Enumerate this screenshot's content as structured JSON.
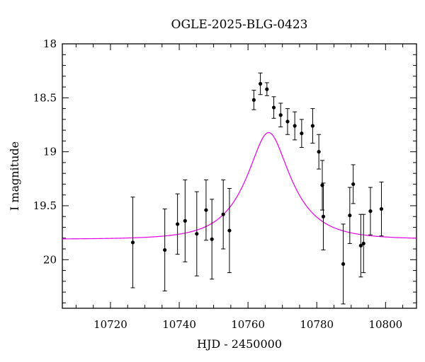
{
  "chart_data": {
    "type": "scatter",
    "title": "OGLE-2025-BLG-0423",
    "xlabel": "HJD - 2450000",
    "ylabel": "I magnitude",
    "xlim": [
      10706,
      10809
    ],
    "ylim": [
      18,
      20.45
    ],
    "y_inverted": true,
    "grid": false,
    "x_major_ticks": [
      10720,
      10740,
      10760,
      10780,
      10800
    ],
    "x_minor_step": 5,
    "y_major_ticks": [
      18,
      18.5,
      19,
      19.5,
      20
    ],
    "y_minor_step": 0.1,
    "x_tick_labels": [
      "10720",
      "10740",
      "10760",
      "10780",
      "10800"
    ],
    "y_tick_labels": [
      "18",
      "18.5",
      "19",
      "19.5",
      "20"
    ],
    "model_color": "#e000e0",
    "model": {
      "t0": 10766.0,
      "u0": 0.43,
      "tE": 11.9,
      "baseline_mag": 19.81
    },
    "series": [
      {
        "points": [
          {
            "x": 10726.5,
            "y": 19.84,
            "err": 0.42
          },
          {
            "x": 10735.8,
            "y": 19.91,
            "err": 0.38
          },
          {
            "x": 10739.5,
            "y": 19.67,
            "err": 0.28
          },
          {
            "x": 10741.7,
            "y": 19.64,
            "err": 0.38
          },
          {
            "x": 10745.1,
            "y": 19.76,
            "err": 0.39
          },
          {
            "x": 10747.8,
            "y": 19.54,
            "err": 0.28
          },
          {
            "x": 10749.5,
            "y": 19.81,
            "err": 0.37
          },
          {
            "x": 10752.8,
            "y": 19.58,
            "err": 0.32
          },
          {
            "x": 10754.6,
            "y": 19.73,
            "err": 0.39
          },
          {
            "x": 10761.7,
            "y": 18.52,
            "err": 0.09
          },
          {
            "x": 10763.6,
            "y": 18.37,
            "err": 0.1
          },
          {
            "x": 10765.5,
            "y": 18.42,
            "err": 0.06
          },
          {
            "x": 10767.5,
            "y": 18.59,
            "err": 0.1
          },
          {
            "x": 10769.5,
            "y": 18.66,
            "err": 0.11
          },
          {
            "x": 10771.5,
            "y": 18.72,
            "err": 0.12
          },
          {
            "x": 10773.6,
            "y": 18.76,
            "err": 0.13
          },
          {
            "x": 10775.6,
            "y": 18.83,
            "err": 0.13
          },
          {
            "x": 10778.8,
            "y": 18.76,
            "err": 0.16
          },
          {
            "x": 10780.6,
            "y": 19.0,
            "err": 0.16
          },
          {
            "x": 10781.6,
            "y": 19.31,
            "err": 0.23
          },
          {
            "x": 10781.9,
            "y": 19.6,
            "err": 0.31
          },
          {
            "x": 10787.7,
            "y": 20.04,
            "err": 0.37
          },
          {
            "x": 10789.6,
            "y": 19.59,
            "err": 0.26
          },
          {
            "x": 10790.6,
            "y": 19.3,
            "err": 0.18
          },
          {
            "x": 10792.8,
            "y": 19.87,
            "err": 0.29
          },
          {
            "x": 10793.6,
            "y": 19.85,
            "err": 0.27
          },
          {
            "x": 10795.6,
            "y": 19.55,
            "err": 0.22
          },
          {
            "x": 10798.8,
            "y": 19.53,
            "err": 0.25
          }
        ]
      }
    ]
  }
}
